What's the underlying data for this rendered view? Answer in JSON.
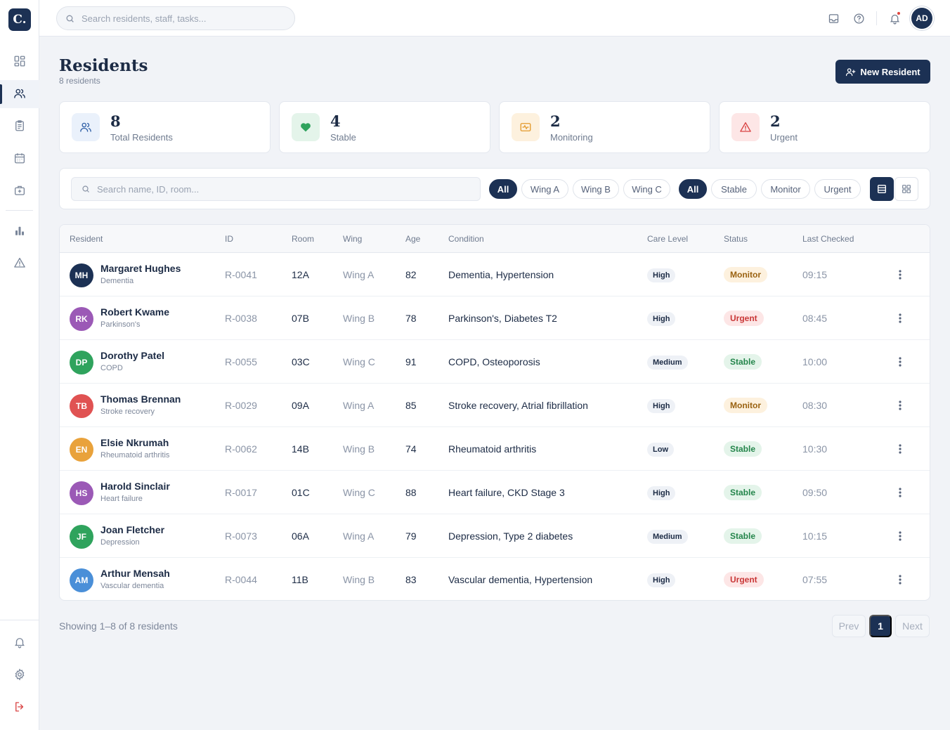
{
  "app": {
    "logo_text": "C.",
    "accent": "#1c3154"
  },
  "topbar": {
    "search_placeholder": "Search residents, staff, tasks...",
    "avatar_initials": "AD",
    "icons": [
      "inbox-icon",
      "help-icon",
      "bell-icon"
    ]
  },
  "sidebar": {
    "items": [
      {
        "icon": "dashboard-icon",
        "active": false
      },
      {
        "icon": "residents-icon",
        "active": true
      },
      {
        "icon": "clipboard-icon",
        "active": false
      },
      {
        "icon": "calendar-icon",
        "active": false
      },
      {
        "icon": "medical-kit-icon",
        "active": false
      },
      {
        "icon": "bar-chart-icon",
        "active": false
      },
      {
        "icon": "alert-triangle-icon",
        "active": false
      }
    ],
    "footer": [
      "bell-icon",
      "settings-icon",
      "logout-icon"
    ]
  },
  "page": {
    "title": "Residents",
    "subtitle": "8 residents",
    "new_button": "New Resident"
  },
  "stats": [
    {
      "value": "8",
      "label": "Total Residents",
      "color": "#2f5fa6",
      "bg": "#eaf1fb"
    },
    {
      "value": "4",
      "label": "Stable",
      "color": "#2fa35d",
      "bg": "#e4f4ea"
    },
    {
      "value": "2",
      "label": "Monitoring",
      "color": "#e39a2d",
      "bg": "#fdf1de"
    },
    {
      "value": "2",
      "label": "Urgent",
      "color": "#d94444",
      "bg": "#fde6e6"
    }
  ],
  "toolbar": {
    "search_placeholder": "Search name, ID, room...",
    "wing_filters": [
      "All",
      "Wing A",
      "Wing B",
      "Wing C"
    ],
    "status_filters": [
      "All",
      "Stable",
      "Monitor",
      "Urgent"
    ]
  },
  "table": {
    "headers": [
      "Resident",
      "ID",
      "Room",
      "Wing",
      "Age",
      "Condition",
      "Care Level",
      "Status",
      "Last Checked"
    ],
    "rows": [
      {
        "initials": "MH",
        "avatar_color": "#1c3154",
        "name": "Margaret Hughes",
        "primary": "Dementia",
        "id": "R-0041",
        "room": "12A",
        "wing": "Wing A",
        "age": "82",
        "condition": "Dementia, Hypertension",
        "care": "High",
        "status": "Monitor",
        "checked": "09:15"
      },
      {
        "initials": "RK",
        "avatar_color": "#9b59b6",
        "name": "Robert Kwame",
        "primary": "Parkinson's",
        "id": "R-0038",
        "room": "07B",
        "wing": "Wing B",
        "age": "78",
        "condition": "Parkinson's, Diabetes T2",
        "care": "High",
        "status": "Urgent",
        "checked": "08:45"
      },
      {
        "initials": "DP",
        "avatar_color": "#2fa35d",
        "name": "Dorothy Patel",
        "primary": "COPD",
        "id": "R-0055",
        "room": "03C",
        "wing": "Wing C",
        "age": "91",
        "condition": "COPD, Osteoporosis",
        "care": "Medium",
        "status": "Stable",
        "checked": "10:00"
      },
      {
        "initials": "TB",
        "avatar_color": "#e05252",
        "name": "Thomas Brennan",
        "primary": "Stroke recovery",
        "id": "R-0029",
        "room": "09A",
        "wing": "Wing A",
        "age": "85",
        "condition": "Stroke recovery, Atrial fibrillation",
        "care": "High",
        "status": "Monitor",
        "checked": "08:30"
      },
      {
        "initials": "EN",
        "avatar_color": "#e9a23b",
        "name": "Elsie Nkrumah",
        "primary": "Rheumatoid arthritis",
        "id": "R-0062",
        "room": "14B",
        "wing": "Wing B",
        "age": "74",
        "condition": "Rheumatoid arthritis",
        "care": "Low",
        "status": "Stable",
        "checked": "10:30"
      },
      {
        "initials": "HS",
        "avatar_color": "#9b59b6",
        "name": "Harold Sinclair",
        "primary": "Heart failure",
        "id": "R-0017",
        "room": "01C",
        "wing": "Wing C",
        "age": "88",
        "condition": "Heart failure, CKD Stage 3",
        "care": "High",
        "status": "Stable",
        "checked": "09:50"
      },
      {
        "initials": "JF",
        "avatar_color": "#2fa35d",
        "name": "Joan Fletcher",
        "primary": "Depression",
        "id": "R-0073",
        "room": "06A",
        "wing": "Wing A",
        "age": "79",
        "condition": "Depression, Type 2 diabetes",
        "care": "Medium",
        "status": "Stable",
        "checked": "10:15"
      },
      {
        "initials": "AM",
        "avatar_color": "#4a8fd8",
        "name": "Arthur Mensah",
        "primary": "Vascular dementia",
        "id": "R-0044",
        "room": "11B",
        "wing": "Wing B",
        "age": "83",
        "condition": "Vascular dementia, Hypertension",
        "care": "High",
        "status": "Urgent",
        "checked": "07:55"
      }
    ]
  },
  "footer": {
    "showing": "Showing 1–8 of 8 residents",
    "prev": "Prev",
    "page": "1",
    "next": "Next"
  }
}
